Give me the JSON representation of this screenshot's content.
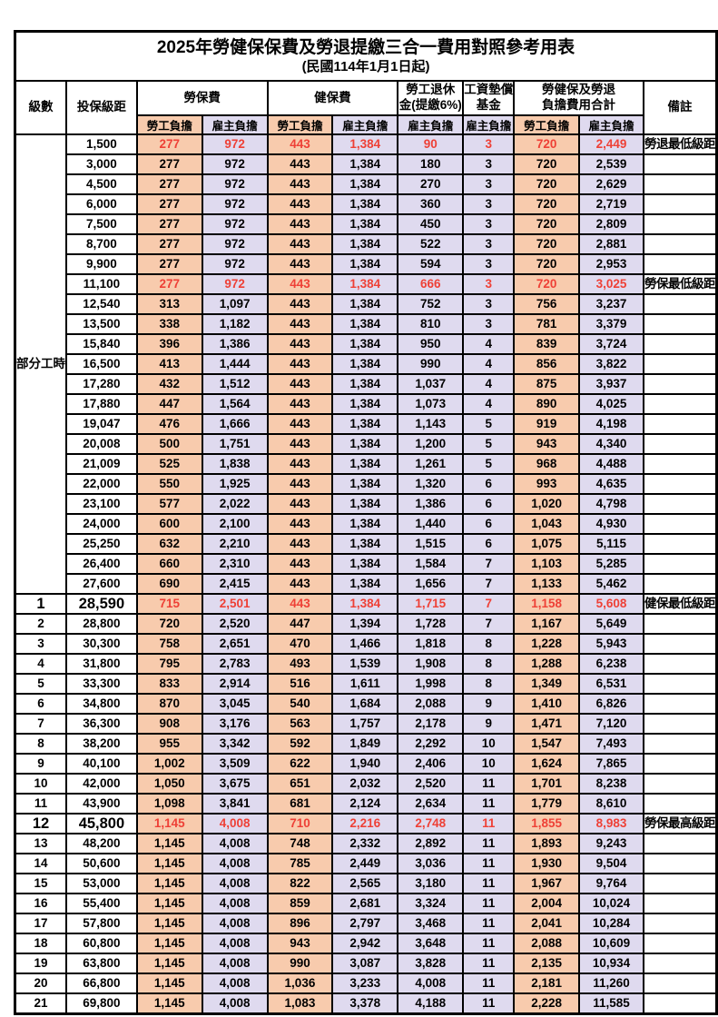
{
  "title": "2025年勞健保保費及勞退提繳三合一費用對照參考用表",
  "subtitle": "(民國114年1月1日起)",
  "colors": {
    "employee_bg": "#F8CBAD",
    "employer_bg": "#DFDAEF",
    "highlight_red": "#EE4036"
  },
  "header": {
    "level": "級數",
    "bracket": "投保級距",
    "labor_insurance": "勞保費",
    "health_insurance": "健保費",
    "pension_line1": "勞工退休",
    "pension_line2": "金(提繳6%)",
    "wage_fund_line1": "工資墊償",
    "wage_fund_line2": "基金",
    "total_line1": "勞健保及勞退",
    "total_line2": "負擔費用合計",
    "remark": "備註"
  },
  "subheaders": [
    {
      "label": "勞工負擔",
      "type": "employee"
    },
    {
      "label": "雇主負擔",
      "type": "employer"
    },
    {
      "label": "勞工負擔",
      "type": "employee"
    },
    {
      "label": "雇主負擔",
      "type": "employer"
    },
    {
      "label": "雇主負擔",
      "type": "employer"
    },
    {
      "label": "雇主負擔",
      "type": "employer"
    },
    {
      "label": "勞工負擔",
      "type": "employee"
    },
    {
      "label": "雇主負擔",
      "type": "employer"
    }
  ],
  "part_time_label": "部分工時",
  "part_time_rowspan": 23,
  "rows": [
    {
      "level": null,
      "bracket": "1,500",
      "values": [
        "277",
        "972",
        "443",
        "1,384",
        "90",
        "3",
        "720",
        "2,449"
      ],
      "remark": "勞退最低級距",
      "red": true,
      "big": false
    },
    {
      "level": null,
      "bracket": "3,000",
      "values": [
        "277",
        "972",
        "443",
        "1,384",
        "180",
        "3",
        "720",
        "2,539"
      ],
      "remark": "",
      "red": false,
      "big": false
    },
    {
      "level": null,
      "bracket": "4,500",
      "values": [
        "277",
        "972",
        "443",
        "1,384",
        "270",
        "3",
        "720",
        "2,629"
      ],
      "remark": "",
      "red": false,
      "big": false
    },
    {
      "level": null,
      "bracket": "6,000",
      "values": [
        "277",
        "972",
        "443",
        "1,384",
        "360",
        "3",
        "720",
        "2,719"
      ],
      "remark": "",
      "red": false,
      "big": false
    },
    {
      "level": null,
      "bracket": "7,500",
      "values": [
        "277",
        "972",
        "443",
        "1,384",
        "450",
        "3",
        "720",
        "2,809"
      ],
      "remark": "",
      "red": false,
      "big": false
    },
    {
      "level": null,
      "bracket": "8,700",
      "values": [
        "277",
        "972",
        "443",
        "1,384",
        "522",
        "3",
        "720",
        "2,881"
      ],
      "remark": "",
      "red": false,
      "big": false
    },
    {
      "level": null,
      "bracket": "9,900",
      "values": [
        "277",
        "972",
        "443",
        "1,384",
        "594",
        "3",
        "720",
        "2,953"
      ],
      "remark": "",
      "red": false,
      "big": false
    },
    {
      "level": null,
      "bracket": "11,100",
      "values": [
        "277",
        "972",
        "443",
        "1,384",
        "666",
        "3",
        "720",
        "3,025"
      ],
      "remark": "勞保最低級距",
      "red": true,
      "big": false
    },
    {
      "level": null,
      "bracket": "12,540",
      "values": [
        "313",
        "1,097",
        "443",
        "1,384",
        "752",
        "3",
        "756",
        "3,237"
      ],
      "remark": "",
      "red": false,
      "big": false
    },
    {
      "level": null,
      "bracket": "13,500",
      "values": [
        "338",
        "1,182",
        "443",
        "1,384",
        "810",
        "3",
        "781",
        "3,379"
      ],
      "remark": "",
      "red": false,
      "big": false
    },
    {
      "level": null,
      "bracket": "15,840",
      "values": [
        "396",
        "1,386",
        "443",
        "1,384",
        "950",
        "4",
        "839",
        "3,724"
      ],
      "remark": "",
      "red": false,
      "big": false
    },
    {
      "level": null,
      "bracket": "16,500",
      "values": [
        "413",
        "1,444",
        "443",
        "1,384",
        "990",
        "4",
        "856",
        "3,822"
      ],
      "remark": "",
      "red": false,
      "big": false
    },
    {
      "level": null,
      "bracket": "17,280",
      "values": [
        "432",
        "1,512",
        "443",
        "1,384",
        "1,037",
        "4",
        "875",
        "3,937"
      ],
      "remark": "",
      "red": false,
      "big": false
    },
    {
      "level": null,
      "bracket": "17,880",
      "values": [
        "447",
        "1,564",
        "443",
        "1,384",
        "1,073",
        "4",
        "890",
        "4,025"
      ],
      "remark": "",
      "red": false,
      "big": false
    },
    {
      "level": null,
      "bracket": "19,047",
      "values": [
        "476",
        "1,666",
        "443",
        "1,384",
        "1,143",
        "5",
        "919",
        "4,198"
      ],
      "remark": "",
      "red": false,
      "big": false
    },
    {
      "level": null,
      "bracket": "20,008",
      "values": [
        "500",
        "1,751",
        "443",
        "1,384",
        "1,200",
        "5",
        "943",
        "4,340"
      ],
      "remark": "",
      "red": false,
      "big": false
    },
    {
      "level": null,
      "bracket": "21,009",
      "values": [
        "525",
        "1,838",
        "443",
        "1,384",
        "1,261",
        "5",
        "968",
        "4,488"
      ],
      "remark": "",
      "red": false,
      "big": false
    },
    {
      "level": null,
      "bracket": "22,000",
      "values": [
        "550",
        "1,925",
        "443",
        "1,384",
        "1,320",
        "6",
        "993",
        "4,635"
      ],
      "remark": "",
      "red": false,
      "big": false
    },
    {
      "level": null,
      "bracket": "23,100",
      "values": [
        "577",
        "2,022",
        "443",
        "1,384",
        "1,386",
        "6",
        "1,020",
        "4,798"
      ],
      "remark": "",
      "red": false,
      "big": false
    },
    {
      "level": null,
      "bracket": "24,000",
      "values": [
        "600",
        "2,100",
        "443",
        "1,384",
        "1,440",
        "6",
        "1,043",
        "4,930"
      ],
      "remark": "",
      "red": false,
      "big": false
    },
    {
      "level": null,
      "bracket": "25,250",
      "values": [
        "632",
        "2,210",
        "443",
        "1,384",
        "1,515",
        "6",
        "1,075",
        "5,115"
      ],
      "remark": "",
      "red": false,
      "big": false
    },
    {
      "level": null,
      "bracket": "26,400",
      "values": [
        "660",
        "2,310",
        "443",
        "1,384",
        "1,584",
        "7",
        "1,103",
        "5,285"
      ],
      "remark": "",
      "red": false,
      "big": false
    },
    {
      "level": null,
      "bracket": "27,600",
      "values": [
        "690",
        "2,415",
        "443",
        "1,384",
        "1,656",
        "7",
        "1,133",
        "5,462"
      ],
      "remark": "",
      "red": false,
      "big": false
    },
    {
      "level": "1",
      "bracket": "28,590",
      "values": [
        "715",
        "2,501",
        "443",
        "1,384",
        "1,715",
        "7",
        "1,158",
        "5,608"
      ],
      "remark": "健保最低級距",
      "red": true,
      "big": true
    },
    {
      "level": "2",
      "bracket": "28,800",
      "values": [
        "720",
        "2,520",
        "447",
        "1,394",
        "1,728",
        "7",
        "1,167",
        "5,649"
      ],
      "remark": "",
      "red": false,
      "big": false
    },
    {
      "level": "3",
      "bracket": "30,300",
      "values": [
        "758",
        "2,651",
        "470",
        "1,466",
        "1,818",
        "8",
        "1,228",
        "5,943"
      ],
      "remark": "",
      "red": false,
      "big": false
    },
    {
      "level": "4",
      "bracket": "31,800",
      "values": [
        "795",
        "2,783",
        "493",
        "1,539",
        "1,908",
        "8",
        "1,288",
        "6,238"
      ],
      "remark": "",
      "red": false,
      "big": false
    },
    {
      "level": "5",
      "bracket": "33,300",
      "values": [
        "833",
        "2,914",
        "516",
        "1,611",
        "1,998",
        "8",
        "1,349",
        "6,531"
      ],
      "remark": "",
      "red": false,
      "big": false
    },
    {
      "level": "6",
      "bracket": "34,800",
      "values": [
        "870",
        "3,045",
        "540",
        "1,684",
        "2,088",
        "9",
        "1,410",
        "6,826"
      ],
      "remark": "",
      "red": false,
      "big": false
    },
    {
      "level": "7",
      "bracket": "36,300",
      "values": [
        "908",
        "3,176",
        "563",
        "1,757",
        "2,178",
        "9",
        "1,471",
        "7,120"
      ],
      "remark": "",
      "red": false,
      "big": false
    },
    {
      "level": "8",
      "bracket": "38,200",
      "values": [
        "955",
        "3,342",
        "592",
        "1,849",
        "2,292",
        "10",
        "1,547",
        "7,493"
      ],
      "remark": "",
      "red": false,
      "big": false
    },
    {
      "level": "9",
      "bracket": "40,100",
      "values": [
        "1,002",
        "3,509",
        "622",
        "1,940",
        "2,406",
        "10",
        "1,624",
        "7,865"
      ],
      "remark": "",
      "red": false,
      "big": false
    },
    {
      "level": "10",
      "bracket": "42,000",
      "values": [
        "1,050",
        "3,675",
        "651",
        "2,032",
        "2,520",
        "11",
        "1,701",
        "8,238"
      ],
      "remark": "",
      "red": false,
      "big": false
    },
    {
      "level": "11",
      "bracket": "43,900",
      "values": [
        "1,098",
        "3,841",
        "681",
        "2,124",
        "2,634",
        "11",
        "1,779",
        "8,610"
      ],
      "remark": "",
      "red": false,
      "big": false
    },
    {
      "level": "12",
      "bracket": "45,800",
      "values": [
        "1,145",
        "4,008",
        "710",
        "2,216",
        "2,748",
        "11",
        "1,855",
        "8,983"
      ],
      "remark": "勞保最高級距",
      "red": true,
      "big": true
    },
    {
      "level": "13",
      "bracket": "48,200",
      "values": [
        "1,145",
        "4,008",
        "748",
        "2,332",
        "2,892",
        "11",
        "1,893",
        "9,243"
      ],
      "remark": "",
      "red": false,
      "big": false
    },
    {
      "level": "14",
      "bracket": "50,600",
      "values": [
        "1,145",
        "4,008",
        "785",
        "2,449",
        "3,036",
        "11",
        "1,930",
        "9,504"
      ],
      "remark": "",
      "red": false,
      "big": false
    },
    {
      "level": "15",
      "bracket": "53,000",
      "values": [
        "1,145",
        "4,008",
        "822",
        "2,565",
        "3,180",
        "11",
        "1,967",
        "9,764"
      ],
      "remark": "",
      "red": false,
      "big": false
    },
    {
      "level": "16",
      "bracket": "55,400",
      "values": [
        "1,145",
        "4,008",
        "859",
        "2,681",
        "3,324",
        "11",
        "2,004",
        "10,024"
      ],
      "remark": "",
      "red": false,
      "big": false
    },
    {
      "level": "17",
      "bracket": "57,800",
      "values": [
        "1,145",
        "4,008",
        "896",
        "2,797",
        "3,468",
        "11",
        "2,041",
        "10,284"
      ],
      "remark": "",
      "red": false,
      "big": false
    },
    {
      "level": "18",
      "bracket": "60,800",
      "values": [
        "1,145",
        "4,008",
        "943",
        "2,942",
        "3,648",
        "11",
        "2,088",
        "10,609"
      ],
      "remark": "",
      "red": false,
      "big": false
    },
    {
      "level": "19",
      "bracket": "63,800",
      "values": [
        "1,145",
        "4,008",
        "990",
        "3,087",
        "3,828",
        "11",
        "2,135",
        "10,934"
      ],
      "remark": "",
      "red": false,
      "big": false
    },
    {
      "level": "20",
      "bracket": "66,800",
      "values": [
        "1,145",
        "4,008",
        "1,036",
        "3,233",
        "4,008",
        "11",
        "2,181",
        "11,260"
      ],
      "remark": "",
      "red": false,
      "big": false
    },
    {
      "level": "21",
      "bracket": "69,800",
      "values": [
        "1,145",
        "4,008",
        "1,083",
        "3,378",
        "4,188",
        "11",
        "2,228",
        "11,585"
      ],
      "remark": "",
      "red": false,
      "big": false
    }
  ]
}
